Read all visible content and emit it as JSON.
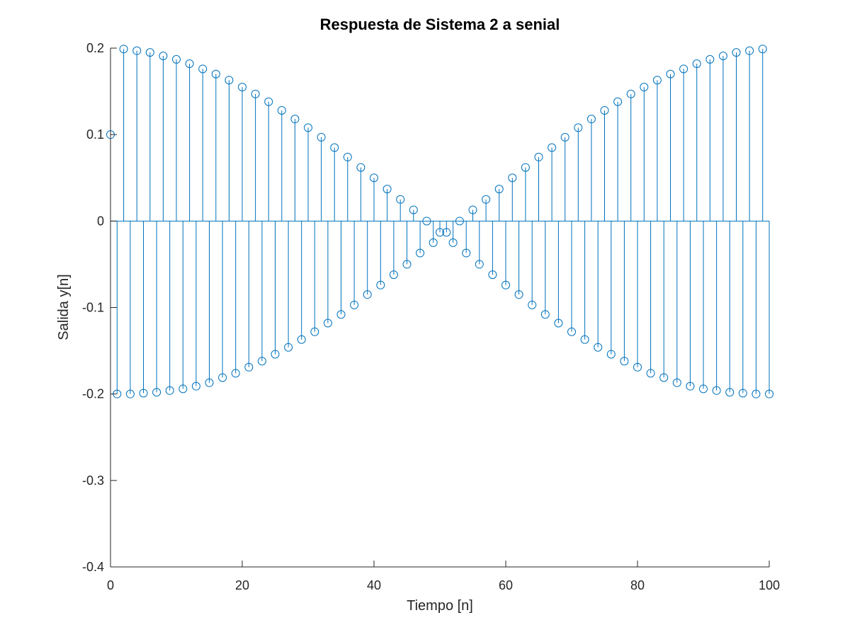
{
  "chart_data": {
    "type": "stem",
    "title": "Respuesta de Sistema 2 a senial",
    "xlabel": "Tiempo [n]",
    "ylabel": "Salida y[n]",
    "xlim": [
      0,
      100
    ],
    "ylim": [
      -0.4,
      0.2
    ],
    "xticks": [
      0,
      20,
      40,
      60,
      80,
      100
    ],
    "xtick_labels": [
      "0",
      "20",
      "40",
      "60",
      "80",
      "100"
    ],
    "yticks": [
      -0.4,
      -0.3,
      -0.2,
      -0.1,
      0,
      0.1,
      0.2
    ],
    "ytick_labels": [
      "-0.4",
      "-0.3",
      "-0.2",
      "-0.1",
      "0",
      "0.1",
      "0.2"
    ],
    "grid": false,
    "color": "#0072BD",
    "x": [
      0,
      1,
      2,
      3,
      4,
      5,
      6,
      7,
      8,
      9,
      10,
      11,
      12,
      13,
      14,
      15,
      16,
      17,
      18,
      19,
      20,
      21,
      22,
      23,
      24,
      25,
      26,
      27,
      28,
      29,
      30,
      31,
      32,
      33,
      34,
      35,
      36,
      37,
      38,
      39,
      40,
      41,
      42,
      43,
      44,
      45,
      46,
      47,
      48,
      49,
      50,
      51,
      52,
      53,
      54,
      55,
      56,
      57,
      58,
      59,
      60,
      61,
      62,
      63,
      64,
      65,
      66,
      67,
      68,
      69,
      70,
      71,
      72,
      73,
      74,
      75,
      76,
      77,
      78,
      79,
      80,
      81,
      82,
      83,
      84,
      85,
      86,
      87,
      88,
      89,
      90,
      91,
      92,
      93,
      94,
      95,
      96,
      97,
      98,
      99,
      100
    ],
    "y": [
      0.1,
      -0.2,
      0.199,
      -0.2,
      0.197,
      -0.199,
      0.195,
      -0.198,
      0.191,
      -0.196,
      0.187,
      -0.194,
      0.182,
      -0.191,
      0.176,
      -0.187,
      0.17,
      -0.181,
      0.163,
      -0.176,
      0.155,
      -0.169,
      0.147,
      -0.162,
      0.138,
      -0.154,
      0.128,
      -0.146,
      0.118,
      -0.137,
      0.108,
      -0.128,
      0.097,
      -0.118,
      0.085,
      -0.108,
      0.074,
      -0.097,
      0.062,
      -0.085,
      0.05,
      -0.074,
      0.037,
      -0.062,
      0.025,
      -0.05,
      0.013,
      -0.037,
      0,
      -0.025,
      -0.013,
      -0.013,
      -0.025,
      0,
      -0.037,
      0.013,
      -0.05,
      0.025,
      -0.062,
      0.037,
      -0.074,
      0.05,
      -0.085,
      0.062,
      -0.097,
      0.074,
      -0.108,
      0.085,
      -0.118,
      0.097,
      -0.128,
      0.108,
      -0.137,
      0.118,
      -0.146,
      0.128,
      -0.154,
      0.138,
      -0.162,
      0.147,
      -0.169,
      0.155,
      -0.176,
      0.163,
      -0.181,
      0.17,
      -0.187,
      0.176,
      -0.191,
      0.182,
      -0.194,
      0.187,
      -0.196,
      0.191,
      -0.198,
      0.195,
      -0.199,
      0.197,
      -0.2,
      0.199,
      -0.2
    ]
  }
}
